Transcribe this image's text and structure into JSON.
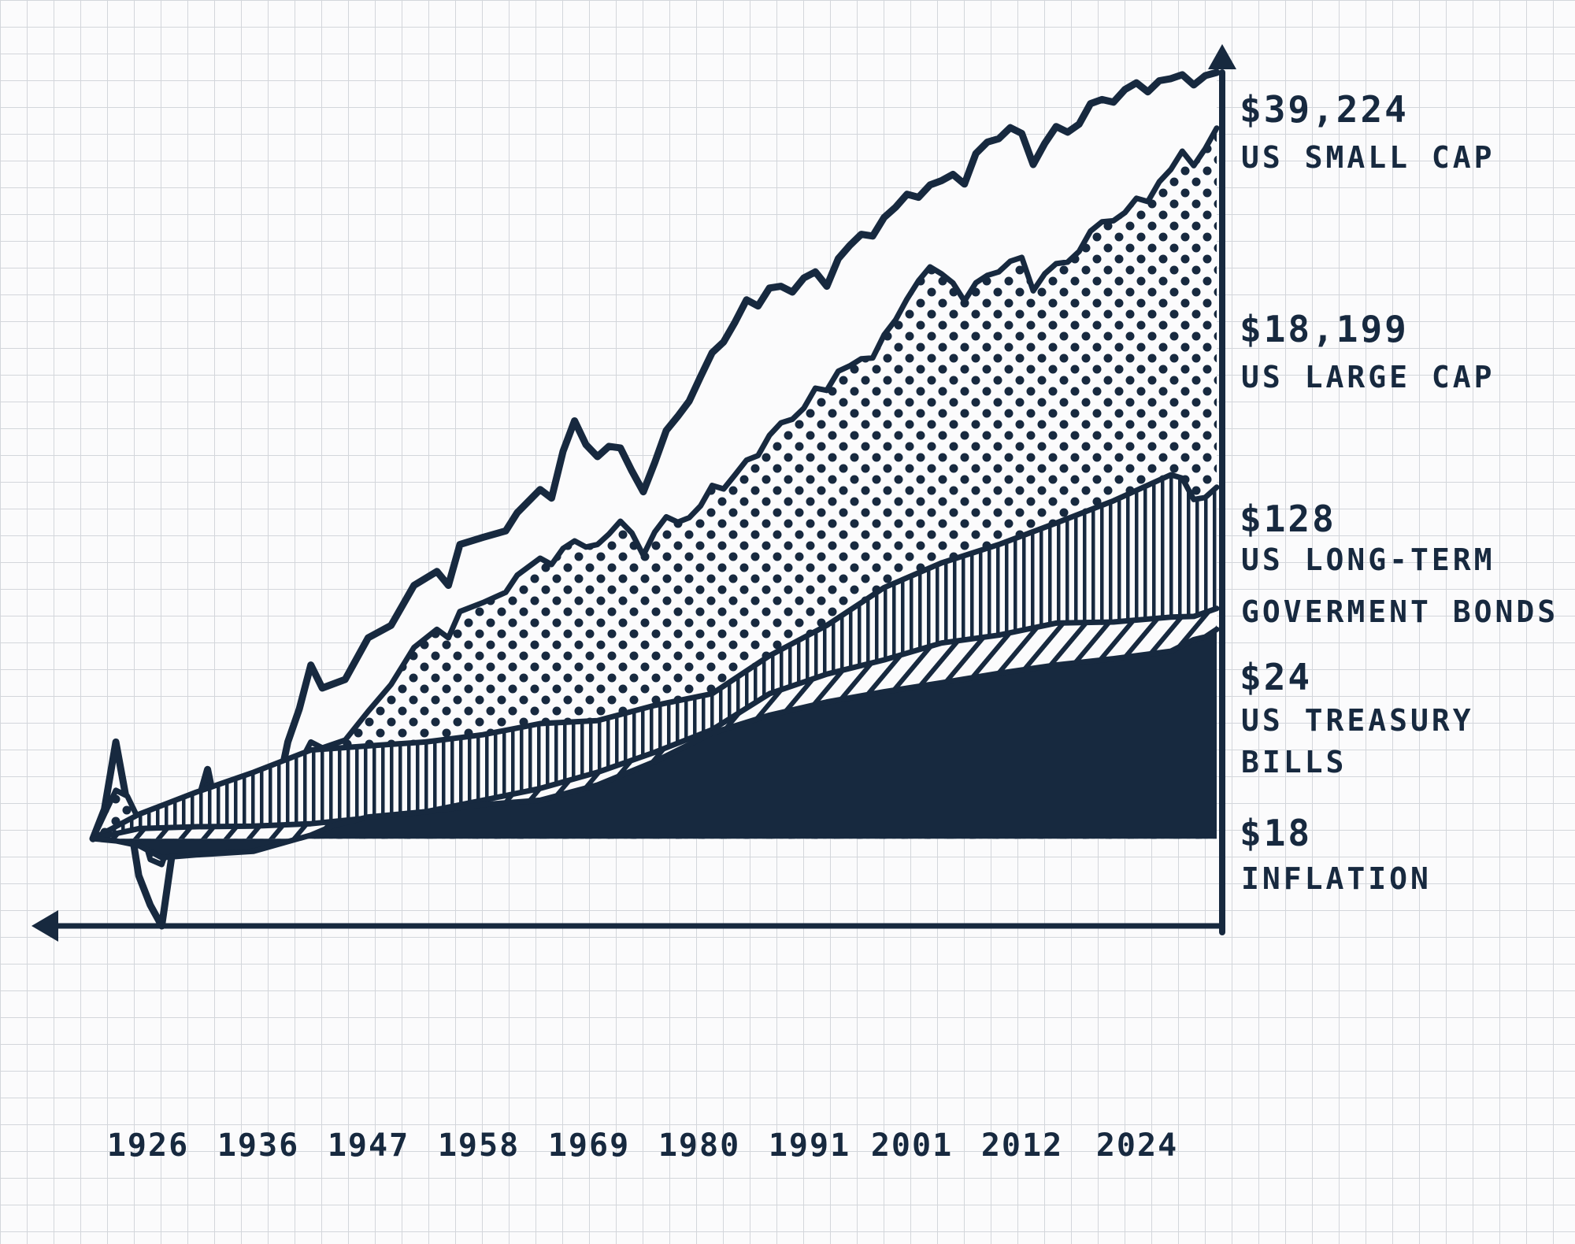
{
  "chart_data": {
    "type": "area",
    "title": "",
    "xlabel": "",
    "ylabel": "",
    "log_scale_y": true,
    "grid": true,
    "x_tick_labels": [
      "1926",
      "1936",
      "1947",
      "1958",
      "1969",
      "1980",
      "1991",
      "2001",
      "2012",
      "2024"
    ],
    "x_range": [
      1926,
      2024
    ],
    "y_range": [
      0.3,
      39224
    ],
    "colors": {
      "ink": "#17293f",
      "paper": "#fbfbfc",
      "grid": "#d3d6db"
    },
    "series": [
      {
        "name": "US SMALL CAP",
        "end_value": "$39,224",
        "pattern": "outline",
        "points": [
          [
            1926,
            1
          ],
          [
            1927,
            1.5
          ],
          [
            1928,
            3.8
          ],
          [
            1929,
            1.6
          ],
          [
            1930,
            0.6
          ],
          [
            1931,
            0.4
          ],
          [
            1932,
            0.3
          ],
          [
            1933,
            0.9
          ],
          [
            1934,
            0.9
          ],
          [
            1935,
            1.5
          ],
          [
            1936,
            2.6
          ],
          [
            1937,
            1.2
          ],
          [
            1938,
            1.4
          ],
          [
            1940,
            1.3
          ],
          [
            1942,
            1.8
          ],
          [
            1943,
            3.8
          ],
          [
            1944,
            6
          ],
          [
            1945,
            11
          ],
          [
            1946,
            8
          ],
          [
            1948,
            9
          ],
          [
            1950,
            16
          ],
          [
            1952,
            19
          ],
          [
            1954,
            33
          ],
          [
            1956,
            40
          ],
          [
            1957,
            33
          ],
          [
            1958,
            58
          ],
          [
            1960,
            64
          ],
          [
            1962,
            70
          ],
          [
            1963,
            90
          ],
          [
            1965,
            124
          ],
          [
            1966,
            110
          ],
          [
            1967,
            210
          ],
          [
            1968,
            320
          ],
          [
            1969,
            230
          ],
          [
            1970,
            195
          ],
          [
            1971,
            225
          ],
          [
            1972,
            220
          ],
          [
            1973,
            160
          ],
          [
            1974,
            120
          ],
          [
            1975,
            180
          ],
          [
            1976,
            280
          ],
          [
            1977,
            340
          ],
          [
            1978,
            420
          ],
          [
            1979,
            590
          ],
          [
            1980,
            820
          ],
          [
            1981,
            950
          ],
          [
            1982,
            1250
          ],
          [
            1983,
            1700
          ],
          [
            1984,
            1560
          ],
          [
            1985,
            2000
          ],
          [
            1986,
            2050
          ],
          [
            1987,
            1890
          ],
          [
            1988,
            2300
          ],
          [
            1989,
            2500
          ],
          [
            1990,
            2050
          ],
          [
            1991,
            3000
          ],
          [
            1992,
            3600
          ],
          [
            1993,
            4200
          ],
          [
            1994,
            4100
          ],
          [
            1995,
            5300
          ],
          [
            1996,
            6100
          ],
          [
            1997,
            7300
          ],
          [
            1998,
            7000
          ],
          [
            1999,
            8300
          ],
          [
            2000,
            8800
          ],
          [
            2001,
            9600
          ],
          [
            2002,
            8400
          ],
          [
            2003,
            12800
          ],
          [
            2004,
            15000
          ],
          [
            2005,
            15700
          ],
          [
            2006,
            18300
          ],
          [
            2007,
            16900
          ],
          [
            2008,
            11000
          ],
          [
            2009,
            14700
          ],
          [
            2010,
            18600
          ],
          [
            2011,
            17200
          ],
          [
            2012,
            19200
          ],
          [
            2013,
            25500
          ],
          [
            2014,
            27000
          ],
          [
            2015,
            26000
          ],
          [
            2016,
            31000
          ],
          [
            2017,
            34000
          ],
          [
            2018,
            30000
          ],
          [
            2019,
            35000
          ],
          [
            2020,
            36000
          ],
          [
            2021,
            38000
          ],
          [
            2022,
            33000
          ],
          [
            2023,
            37500
          ],
          [
            2024,
            39224
          ]
        ]
      },
      {
        "name": "US LARGE CAP",
        "end_value": "$18,199",
        "pattern": "dots",
        "points": [
          [
            1926,
            1
          ],
          [
            1927,
            1.4
          ],
          [
            1928,
            1.95
          ],
          [
            1929,
            1.8
          ],
          [
            1930,
            1.3
          ],
          [
            1931,
            0.75
          ],
          [
            1932,
            0.7
          ],
          [
            1933,
            1.1
          ],
          [
            1934,
            1.05
          ],
          [
            1935,
            1.6
          ],
          [
            1936,
            2.1
          ],
          [
            1937,
            1.4
          ],
          [
            1938,
            1.8
          ],
          [
            1940,
            1.6
          ],
          [
            1942,
            1.8
          ],
          [
            1944,
            2.8
          ],
          [
            1945,
            3.8
          ],
          [
            1946,
            3.5
          ],
          [
            1948,
            3.9
          ],
          [
            1950,
            5.8
          ],
          [
            1952,
            8.4
          ],
          [
            1954,
            14
          ],
          [
            1956,
            18
          ],
          [
            1957,
            16
          ],
          [
            1958,
            23
          ],
          [
            1960,
            26
          ],
          [
            1962,
            30
          ],
          [
            1963,
            38
          ],
          [
            1965,
            48
          ],
          [
            1966,
            44
          ],
          [
            1967,
            55
          ],
          [
            1968,
            61
          ],
          [
            1969,
            56
          ],
          [
            1970,
            58
          ],
          [
            1971,
            67
          ],
          [
            1972,
            80
          ],
          [
            1973,
            68
          ],
          [
            1974,
            50
          ],
          [
            1975,
            69
          ],
          [
            1976,
            85
          ],
          [
            1977,
            79
          ],
          [
            1978,
            84
          ],
          [
            1979,
            99
          ],
          [
            1980,
            131
          ],
          [
            1981,
            125
          ],
          [
            1982,
            152
          ],
          [
            1983,
            186
          ],
          [
            1984,
            198
          ],
          [
            1985,
            262
          ],
          [
            1986,
            311
          ],
          [
            1987,
            327
          ],
          [
            1988,
            381
          ],
          [
            1989,
            502
          ],
          [
            1990,
            487
          ],
          [
            1991,
            635
          ],
          [
            1992,
            683
          ],
          [
            1993,
            752
          ],
          [
            1994,
            762
          ],
          [
            1995,
            1048
          ],
          [
            1996,
            1289
          ],
          [
            1997,
            1720
          ],
          [
            1998,
            2211
          ],
          [
            1999,
            2677
          ],
          [
            2000,
            2433
          ],
          [
            2001,
            2144
          ],
          [
            2002,
            1671
          ],
          [
            2003,
            2150
          ],
          [
            2004,
            2384
          ],
          [
            2005,
            2501
          ],
          [
            2006,
            2896
          ],
          [
            2007,
            3055
          ],
          [
            2008,
            1925
          ],
          [
            2009,
            2434
          ],
          [
            2010,
            2800
          ],
          [
            2011,
            2860
          ],
          [
            2012,
            3318
          ],
          [
            2013,
            4392
          ],
          [
            2014,
            4993
          ],
          [
            2015,
            5062
          ],
          [
            2016,
            5667
          ],
          [
            2017,
            6905
          ],
          [
            2018,
            6602
          ],
          [
            2019,
            8682
          ],
          [
            2020,
            10279
          ],
          [
            2021,
            13230
          ],
          [
            2022,
            10834
          ],
          [
            2023,
            13682
          ],
          [
            2024,
            18199
          ]
        ]
      },
      {
        "name": "US LONG-TERM GOVERMENT BONDS",
        "end_value": "$128",
        "pattern": "vertical-lines",
        "points": [
          [
            1926,
            1
          ],
          [
            1930,
            1.4
          ],
          [
            1935,
            1.9
          ],
          [
            1940,
            2.5
          ],
          [
            1945,
            3.4
          ],
          [
            1950,
            3.6
          ],
          [
            1955,
            3.8
          ],
          [
            1960,
            4.2
          ],
          [
            1965,
            4.9
          ],
          [
            1970,
            5.1
          ],
          [
            1975,
            6.3
          ],
          [
            1980,
            7.4
          ],
          [
            1985,
            12.5
          ],
          [
            1990,
            19
          ],
          [
            1995,
            32
          ],
          [
            2000,
            45
          ],
          [
            2005,
            58
          ],
          [
            2010,
            78
          ],
          [
            2015,
            106
          ],
          [
            2020,
            152
          ],
          [
            2021,
            145
          ],
          [
            2022,
            108
          ],
          [
            2023,
            111
          ],
          [
            2024,
            128
          ]
        ]
      },
      {
        "name": "US TREASURY BILLS",
        "end_value": "$24",
        "pattern": "diagonal-lines",
        "points": [
          [
            1926,
            1
          ],
          [
            1930,
            1.15
          ],
          [
            1935,
            1.18
          ],
          [
            1940,
            1.19
          ],
          [
            1945,
            1.23
          ],
          [
            1950,
            1.33
          ],
          [
            1955,
            1.45
          ],
          [
            1960,
            1.7
          ],
          [
            1965,
            2.0
          ],
          [
            1970,
            2.5
          ],
          [
            1975,
            3.3
          ],
          [
            1980,
            4.5
          ],
          [
            1985,
            7.4
          ],
          [
            1990,
            9.7
          ],
          [
            1995,
            11.8
          ],
          [
            2000,
            14.9
          ],
          [
            2005,
            16.6
          ],
          [
            2010,
            19.6
          ],
          [
            2015,
            19.9
          ],
          [
            2020,
            21.3
          ],
          [
            2022,
            21.5
          ],
          [
            2023,
            22.7
          ],
          [
            2024,
            24
          ]
        ]
      },
      {
        "name": "INFLATION",
        "end_value": "$18",
        "pattern": "solid",
        "points": [
          [
            1926,
            1
          ],
          [
            1928,
            0.97
          ],
          [
            1930,
            0.91
          ],
          [
            1932,
            0.77
          ],
          [
            1933,
            0.78
          ],
          [
            1935,
            0.8
          ],
          [
            1940,
            0.84
          ],
          [
            1945,
            1.05
          ],
          [
            1947,
            1.2
          ],
          [
            1950,
            1.35
          ],
          [
            1955,
            1.45
          ],
          [
            1960,
            1.6
          ],
          [
            1965,
            1.7
          ],
          [
            1970,
            2.1
          ],
          [
            1975,
            2.9
          ],
          [
            1980,
            4.3
          ],
          [
            1985,
            5.5
          ],
          [
            1990,
            6.6
          ],
          [
            1995,
            7.6
          ],
          [
            2000,
            8.6
          ],
          [
            2005,
            9.8
          ],
          [
            2010,
            11
          ],
          [
            2015,
            12
          ],
          [
            2020,
            13.3
          ],
          [
            2022,
            15.6
          ],
          [
            2023,
            16.2
          ],
          [
            2024,
            18
          ]
        ]
      }
    ]
  }
}
